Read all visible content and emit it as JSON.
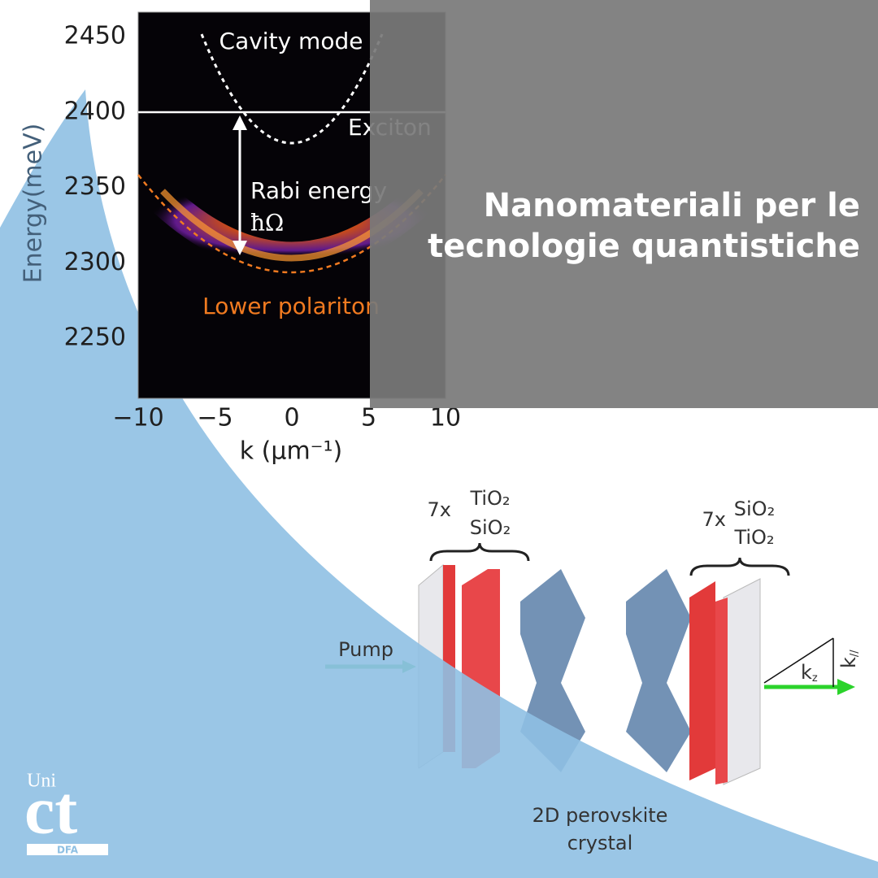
{
  "headline": {
    "line1": "Nanomateriali per le",
    "line2": "tecnologie quantistiche"
  },
  "figure": {
    "y_axis_label": "Energy(meV)",
    "x_axis_label": "k (μm⁻¹)",
    "yticks": [
      "2450",
      "2400",
      "2350",
      "2300",
      "2250"
    ],
    "xticks": [
      "−10",
      "−5",
      "0",
      "5",
      "10"
    ],
    "annotations": {
      "cavity": "Cavity mode",
      "exciton": "Exciton",
      "rabi": "Rabi energy",
      "hbar": "ħΩ",
      "polariton": "Lower polariton"
    }
  },
  "diagram": {
    "left_stack": {
      "count": "7x",
      "top": "TiO₂",
      "bottom": "SiO₂"
    },
    "right_stack": {
      "count": "7x",
      "top": "SiO₂",
      "bottom": "TiO₂"
    },
    "pump": "Pump",
    "crystal_line1": "2D perovskite",
    "crystal_line2": "crystal",
    "kz": {
      "base": "k",
      "sub": "z"
    },
    "kpar": {
      "base": "k",
      "sub": "//"
    }
  },
  "logo": {
    "top": "Uni",
    "main": "ct",
    "bottom": "DFA"
  }
}
